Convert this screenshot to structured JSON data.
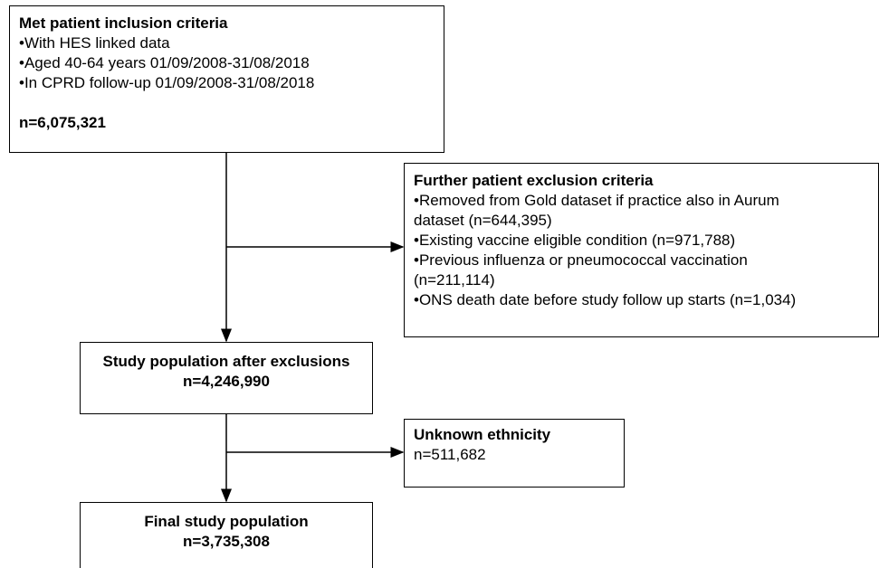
{
  "nodes": [
    {
      "title": "Met patient inclusion criteria",
      "lines": [
        "•With HES linked data",
        "•Aged 40-64 years 01/09/2008-31/08/2018",
        "•In CPRD follow-up 01/09/2008-31/08/2018"
      ],
      "count": "n=6,075,321"
    },
    {
      "title": "Further patient exclusion criteria",
      "lines": [
        "•Removed from Gold dataset if practice also in Aurum",
        "dataset (n=644,395)",
        "•Existing vaccine eligible condition (n=971,788)",
        "•Previous influenza or pneumococcal vaccination",
        "(n=211,114)",
        "•ONS death date before study follow up starts (n=1,034)"
      ]
    },
    {
      "title": "Study population after exclusions",
      "count": "n=4,246,990"
    },
    {
      "title": "Unknown ethnicity",
      "count": "n=511,682"
    },
    {
      "title": "Final study population",
      "count": "n=3,735,308"
    }
  ]
}
